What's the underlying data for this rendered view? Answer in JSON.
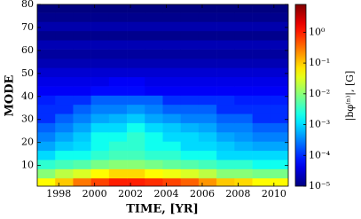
{
  "chart_data": {
    "type": "heatmap",
    "x_label": "TIME, [YR]",
    "y_label": "MODE",
    "colorbar_label": "|bφ⁽ⁿ⁾|, [G]",
    "x": [
      1997.3,
      1998.3,
      1999.3,
      2000.3,
      2001.3,
      2002.3,
      2003.3,
      2004.3,
      2005.3,
      2006.3,
      2007.3,
      2008.3,
      2009.3,
      2010.3
    ],
    "y": [
      2.5,
      6.5,
      10.5,
      14.5,
      18.5,
      22.5,
      26.5,
      30.5,
      34.5,
      38.5,
      42.5,
      46.5,
      50.5,
      54.5,
      58.5,
      62.5,
      66.5,
      70.5,
      74.5,
      78.5
    ],
    "z": [
      [
        0.05,
        0.1,
        0.3,
        0.6,
        1,
        1,
        0.8,
        0.6,
        0.4,
        0.2,
        0.1,
        0.08,
        0.05,
        0.05
      ],
      [
        0.01,
        0.02,
        0.03,
        0.05,
        0.08,
        0.08,
        0.05,
        0.04,
        0.03,
        0.02,
        0.01,
        0.01,
        0.008,
        0.008
      ],
      [
        0.003,
        0.004,
        0.005,
        0.008,
        0.01,
        0.01,
        0.008,
        0.006,
        0.005,
        0.004,
        0.003,
        0.003,
        0.002,
        0.002
      ],
      [
        0.001,
        0.002,
        0.002,
        0.003,
        0.004,
        0.004,
        0.003,
        0.003,
        0.002,
        0.002,
        0.001,
        0.001,
        0.001,
        0.001
      ],
      [
        0.0005,
        0.0008,
        0.001,
        0.002,
        0.003,
        0.003,
        0.002,
        0.002,
        0.001,
        0.001,
        0.0008,
        0.0006,
        0.0005,
        0.0005
      ],
      [
        0.0003,
        0.0005,
        0.0008,
        0.002,
        0.002,
        0.003,
        0.002,
        0.001,
        0.001,
        0.0008,
        0.0005,
        0.0004,
        0.0003,
        0.0003
      ],
      [
        0.0002,
        0.0003,
        0.0005,
        0.001,
        0.001,
        0.002,
        0.001,
        0.0008,
        0.0006,
        0.0005,
        0.0003,
        0.0003,
        0.0002,
        0.0002
      ],
      [
        0.0001,
        0.0002,
        0.0003,
        0.0005,
        0.0006,
        0.0008,
        0.0005,
        0.0004,
        0.0003,
        0.0003,
        0.0002,
        0.0002,
        0.0001,
        0.0001
      ],
      [
        0.0001,
        0.0001,
        0.0002,
        0.0003,
        0.0003,
        0.0004,
        0.0003,
        0.0002,
        0.0002,
        0.0002,
        0.0001,
        0.0001,
        0.0001,
        0.0001
      ],
      [
        8e-05,
        0.0001,
        0.0001,
        0.0002,
        0.0002,
        0.0002,
        0.0002,
        0.0001,
        0.0001,
        0.0001,
        0.0001,
        8e-05,
        8e-05,
        8e-05
      ],
      [
        5e-05,
        5e-05,
        5e-05,
        6e-05,
        6e-05,
        6e-05,
        5e-05,
        5e-05,
        5e-05,
        5e-05,
        5e-05,
        5e-05,
        5e-05,
        5e-05
      ],
      [
        4e-05,
        4e-05,
        4e-05,
        4e-05,
        5e-05,
        5e-05,
        4e-05,
        4e-05,
        4e-05,
        4e-05,
        4e-05,
        4e-05,
        4e-05,
        4e-05
      ],
      [
        3e-05,
        3e-05,
        3e-05,
        3e-05,
        3e-05,
        3e-05,
        3e-05,
        3e-05,
        3e-05,
        3e-05,
        3e-05,
        3e-05,
        3e-05,
        3e-05
      ],
      [
        2e-05,
        2e-05,
        2e-05,
        2e-05,
        2e-05,
        2e-05,
        2e-05,
        2e-05,
        2e-05,
        2e-05,
        2e-05,
        2e-05,
        2e-05,
        2e-05
      ],
      [
        1.5e-05,
        1.5e-05,
        1.5e-05,
        1.5e-05,
        1.5e-05,
        1.5e-05,
        1.5e-05,
        1.5e-05,
        1.5e-05,
        1.5e-05,
        1.5e-05,
        1.5e-05,
        1.5e-05,
        1.5e-05
      ],
      [
        2e-05,
        2e-05,
        2e-05,
        2e-05,
        2e-05,
        2e-05,
        2e-05,
        2e-05,
        2e-05,
        2e-05,
        2e-05,
        2e-05,
        2e-05,
        2e-05
      ],
      [
        1.2e-05,
        1.2e-05,
        1.2e-05,
        1.2e-05,
        1.2e-05,
        1.2e-05,
        1.2e-05,
        1.2e-05,
        1.2e-05,
        1.2e-05,
        1.2e-05,
        1.2e-05,
        1.2e-05,
        1.2e-05
      ],
      [
        1.8e-05,
        1.8e-05,
        1.8e-05,
        1.8e-05,
        1.8e-05,
        1.8e-05,
        1.8e-05,
        1.8e-05,
        1.8e-05,
        1.8e-05,
        1.8e-05,
        1.8e-05,
        1.8e-05,
        1.8e-05
      ],
      [
        1.2e-05,
        1.2e-05,
        1.2e-05,
        1.2e-05,
        1.2e-05,
        1.2e-05,
        1.2e-05,
        1.2e-05,
        1.2e-05,
        1.2e-05,
        1.2e-05,
        1.2e-05,
        1.2e-05,
        1.2e-05
      ],
      [
        1e-05,
        1e-05,
        1e-05,
        1e-05,
        1e-05,
        1e-05,
        1e-05,
        1e-05,
        1e-05,
        1e-05,
        1e-05,
        1e-05,
        1e-05,
        1e-05
      ]
    ],
    "xlim": [
      1996.8,
      2010.8
    ],
    "xticks": [
      1998,
      2000,
      2002,
      2004,
      2006,
      2008,
      2010
    ],
    "ylim": [
      1,
      80
    ],
    "yticks": [
      10,
      20,
      30,
      40,
      50,
      60,
      70,
      80
    ],
    "colormap": "jet",
    "color_log": true,
    "clim": [
      1e-05,
      8
    ],
    "cticks": [
      {
        "value": 1,
        "label": "10⁰"
      },
      {
        "value": 0.1,
        "label": "10⁻¹"
      },
      {
        "value": 0.01,
        "label": "10⁻²"
      },
      {
        "value": 0.001,
        "label": "10⁻³"
      },
      {
        "value": 0.0001,
        "label": "10⁻⁴"
      },
      {
        "value": 1e-05,
        "label": "10⁻⁵"
      }
    ]
  }
}
